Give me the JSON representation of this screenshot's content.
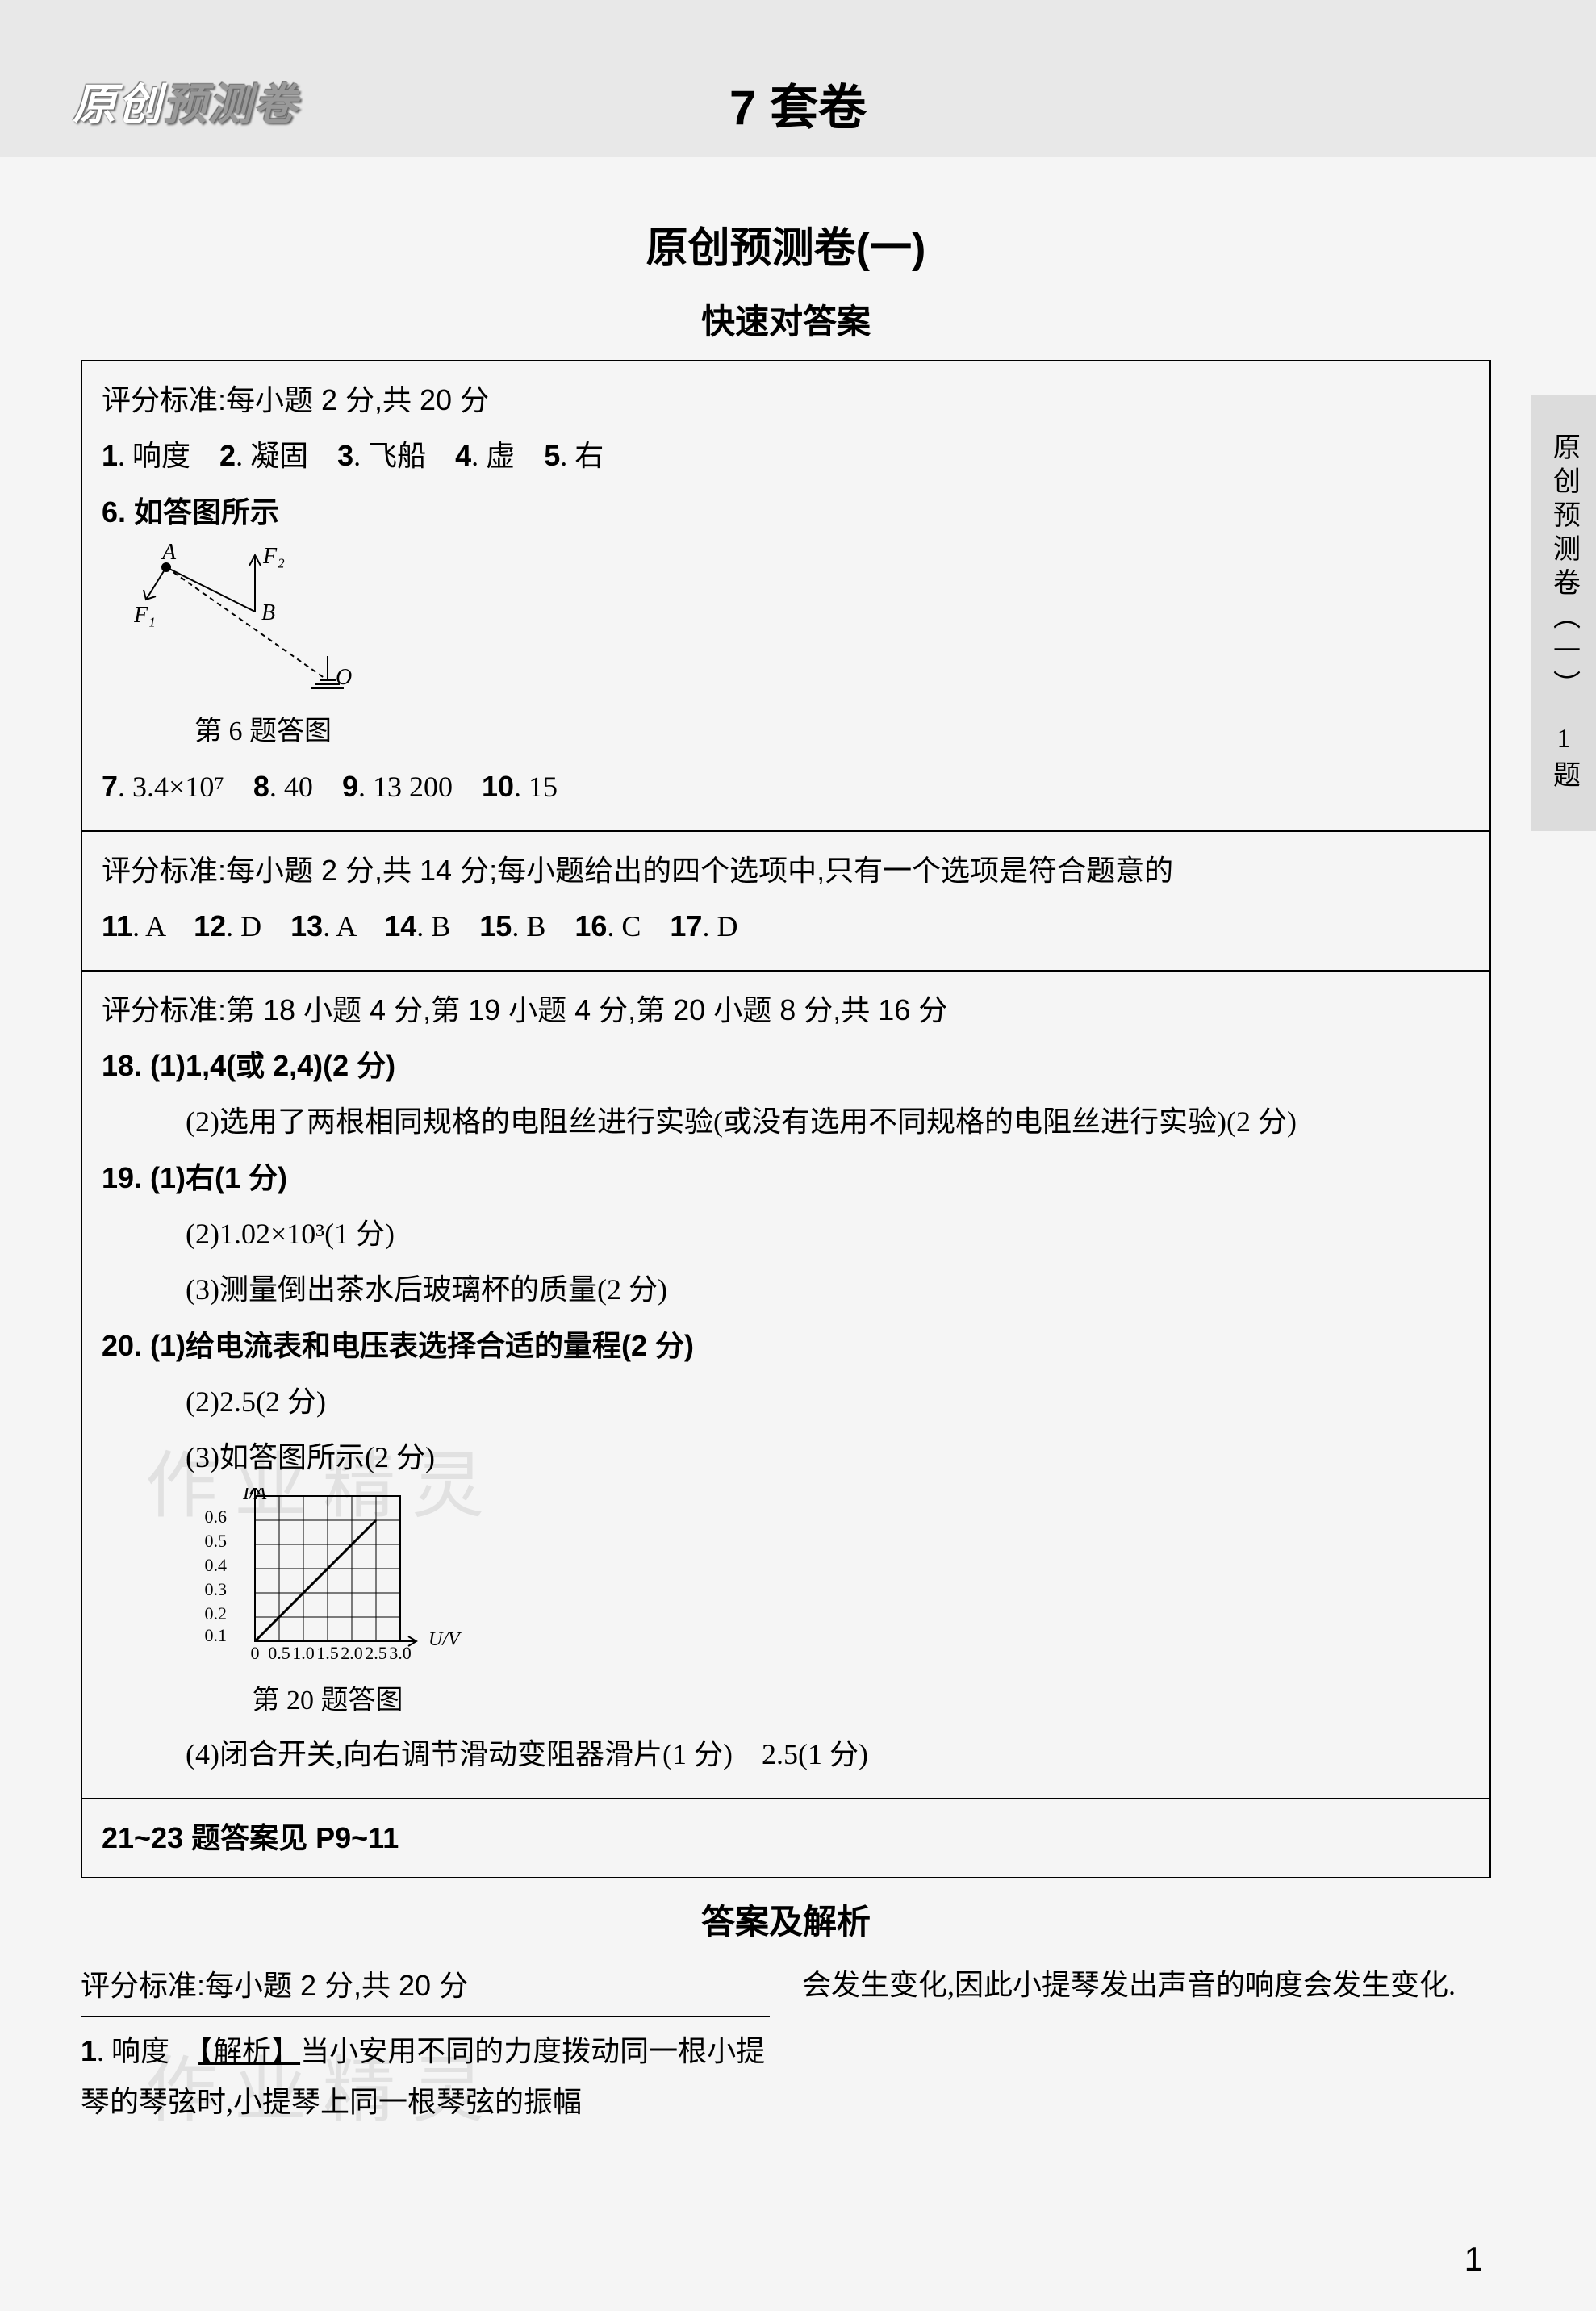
{
  "header": {
    "logo_prefix": "原创",
    "logo_accent": "预测卷",
    "title": "7 套卷"
  },
  "paper_title": "原创预测卷(一)",
  "quick_title": "快速对答案",
  "side_tab": "原创预测卷（一）　1题",
  "page_number": "1",
  "sec1": {
    "criteria": "评分标准:每小题 2 分,共 20 分",
    "line1_items": [
      {
        "n": "1",
        "t": ". 响度　"
      },
      {
        "n": "2",
        "t": ". 凝固　"
      },
      {
        "n": "3",
        "t": ". 飞船　"
      },
      {
        "n": "4",
        "t": ". 虚　"
      },
      {
        "n": "5",
        "t": ". 右"
      }
    ],
    "q6": "6. 如答图所示",
    "fig6": {
      "caption": "第 6 题答图",
      "labels": {
        "A": "A",
        "B": "B",
        "O": "O",
        "F1": "F₁",
        "F2": "F₂"
      },
      "colors": {
        "stroke": "#000000"
      }
    },
    "line3_items": [
      {
        "n": "7",
        "t": ". 3.4×10⁷　"
      },
      {
        "n": "8",
        "t": ". 40　"
      },
      {
        "n": "9",
        "t": ". 13 200　"
      },
      {
        "n": "10",
        "t": ". 15"
      }
    ]
  },
  "sec2": {
    "criteria": "评分标准:每小题 2 分,共 14 分;每小题给出的四个选项中,只有一个选项是符合题意的",
    "items": [
      {
        "n": "11",
        "t": ". A　"
      },
      {
        "n": "12",
        "t": ". D　"
      },
      {
        "n": "13",
        "t": ". A　"
      },
      {
        "n": "14",
        "t": ". B　"
      },
      {
        "n": "15",
        "t": ". B　"
      },
      {
        "n": "16",
        "t": ". C　"
      },
      {
        "n": "17",
        "t": ". D"
      }
    ]
  },
  "sec3": {
    "criteria": "评分标准:第 18 小题 4 分,第 19 小题 4 分,第 20 小题 8 分,共 16 分",
    "q18_1": "18. (1)1,4(或 2,4)(2 分)",
    "q18_2": "(2)选用了两根相同规格的电阻丝进行实验(或没有选用不同规格的电阻丝进行实验)(2 分)",
    "q19_1": "19. (1)右(1 分)",
    "q19_2": "(2)1.02×10³(1 分)",
    "q19_3": "(3)测量倒出茶水后玻璃杯的质量(2 分)",
    "q20_1": "20. (1)给电流表和电压表选择合适的量程(2 分)",
    "q20_2": "(2)2.5(2 分)",
    "q20_3": "(3)如答图所示(2 分)",
    "fig20": {
      "caption": "第 20 题答图",
      "ylabel": "I/A",
      "xlabel": "U/V",
      "yticks": [
        "0.1",
        "0.2",
        "0.3",
        "0.4",
        "0.5",
        "0.6"
      ],
      "xticks": [
        "0",
        "0.5",
        "1.0",
        "1.5",
        "2.0",
        "2.5",
        "3.0"
      ],
      "grid_color": "#000000",
      "line_color": "#000000",
      "bg": "#ffffff"
    },
    "q20_4": "(4)闭合开关,向右调节滑动变阻器滑片(1 分)　2.5(1 分)"
  },
  "sec4": {
    "ref": "21~23 题答案见 P9~11"
  },
  "explain": {
    "title": "答案及解析",
    "criteria": "评分标准:每小题 2 分,共 20 分",
    "left_n": "1",
    "left_a": ". 响度　",
    "left_tag": "【解析】",
    "left_rest": "当小安用不同的力度拨动同一根小提琴的琴弦时,小提琴上同一根琴弦的振幅",
    "right": "会发生变化,因此小提琴发出声音的响度会发生变化."
  },
  "watermarks": [
    "作业精灵",
    "作业精灵"
  ]
}
